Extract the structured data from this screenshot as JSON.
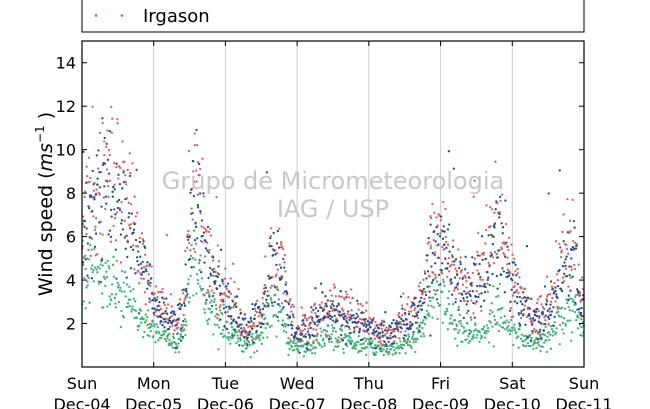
{
  "chart_data": {
    "type": "scatter",
    "ylabel": {
      "prefix": "Wind speed (",
      "unit_main": "ms",
      "unit_exp": "−1",
      "suffix": " )"
    },
    "ylim": [
      0,
      15
    ],
    "xlim": [
      0,
      7
    ],
    "yticks": [
      2,
      4,
      6,
      8,
      10,
      12,
      14
    ],
    "xticks": [
      {
        "pos": 0,
        "day": "Sun",
        "date": "Dec-04"
      },
      {
        "pos": 1,
        "day": "Mon",
        "date": "Dec-05"
      },
      {
        "pos": 2,
        "day": "Tue",
        "date": "Dec-06"
      },
      {
        "pos": 3,
        "day": "Wed",
        "date": "Dec-07"
      },
      {
        "pos": 4,
        "day": "Thu",
        "date": "Dec-08"
      },
      {
        "pos": 5,
        "day": "Fri",
        "date": "Dec-09"
      },
      {
        "pos": 6,
        "day": "Sat",
        "date": "Dec-10"
      },
      {
        "pos": 7,
        "day": "Sun",
        "date": "Dec-11"
      }
    ],
    "grid": "vertical",
    "legend_placement": "top",
    "watermark": [
      "Grupo de Micrometeorologia",
      "IAG / USP"
    ],
    "series": [
      {
        "name": "Irgason",
        "color": "#d95f5f",
        "envelope": [
          [
            0.0,
            7.0
          ],
          [
            0.15,
            8.0
          ],
          [
            0.3,
            8.5
          ],
          [
            0.45,
            9.0
          ],
          [
            0.6,
            8.0
          ],
          [
            0.75,
            5.8
          ],
          [
            0.9,
            4.0
          ],
          [
            1.0,
            3.0
          ],
          [
            1.2,
            2.5
          ],
          [
            1.35,
            2.0
          ],
          [
            1.45,
            4.0
          ],
          [
            1.55,
            10.0
          ],
          [
            1.62,
            8.0
          ],
          [
            1.75,
            5.0
          ],
          [
            1.9,
            3.5
          ],
          [
            2.1,
            3.0
          ],
          [
            2.3,
            1.5
          ],
          [
            2.5,
            2.5
          ],
          [
            2.65,
            5.0
          ],
          [
            2.78,
            5.0
          ],
          [
            2.9,
            2.5
          ],
          [
            3.0,
            1.5
          ],
          [
            3.2,
            2.0
          ],
          [
            3.35,
            2.5
          ],
          [
            3.5,
            3.0
          ],
          [
            3.7,
            2.5
          ],
          [
            4.0,
            2.0
          ],
          [
            4.2,
            1.5
          ],
          [
            4.5,
            2.0
          ],
          [
            4.7,
            2.5
          ],
          [
            4.85,
            5.0
          ],
          [
            5.0,
            6.0
          ],
          [
            5.2,
            4.0
          ],
          [
            5.4,
            3.5
          ],
          [
            5.6,
            4.5
          ],
          [
            5.78,
            6.5
          ],
          [
            5.95,
            4.5
          ],
          [
            6.1,
            3.5
          ],
          [
            6.25,
            2.5
          ],
          [
            6.45,
            2.5
          ],
          [
            6.6,
            3.5
          ],
          [
            6.75,
            5.0
          ],
          [
            6.85,
            6.0
          ],
          [
            6.95,
            3.0
          ],
          [
            7.0,
            2.8
          ]
        ]
      },
      {
        "name": "",
        "color": "#1f4e8c",
        "envelope": [
          [
            0.0,
            6.0
          ],
          [
            0.15,
            7.2
          ],
          [
            0.3,
            7.8
          ],
          [
            0.45,
            8.0
          ],
          [
            0.6,
            7.0
          ],
          [
            0.75,
            5.5
          ],
          [
            0.9,
            4.0
          ],
          [
            1.0,
            2.8
          ],
          [
            1.2,
            2.3
          ],
          [
            1.35,
            2.0
          ],
          [
            1.45,
            3.5
          ],
          [
            1.55,
            9.0
          ],
          [
            1.62,
            7.5
          ],
          [
            1.75,
            4.5
          ],
          [
            1.9,
            3.5
          ],
          [
            2.1,
            2.5
          ],
          [
            2.3,
            1.5
          ],
          [
            2.5,
            2.5
          ],
          [
            2.65,
            4.5
          ],
          [
            2.78,
            4.5
          ],
          [
            2.9,
            2.2
          ],
          [
            3.0,
            1.5
          ],
          [
            3.2,
            1.8
          ],
          [
            3.35,
            2.5
          ],
          [
            3.5,
            2.8
          ],
          [
            3.7,
            2.2
          ],
          [
            4.0,
            1.8
          ],
          [
            4.2,
            1.5
          ],
          [
            4.5,
            2.0
          ],
          [
            4.7,
            2.5
          ],
          [
            4.85,
            4.5
          ],
          [
            5.0,
            5.5
          ],
          [
            5.2,
            4.0
          ],
          [
            5.4,
            3.2
          ],
          [
            5.6,
            4.0
          ],
          [
            5.78,
            6.0
          ],
          [
            5.95,
            4.0
          ],
          [
            6.1,
            3.2
          ],
          [
            6.25,
            2.2
          ],
          [
            6.45,
            2.2
          ],
          [
            6.6,
            3.2
          ],
          [
            6.75,
            4.5
          ],
          [
            6.85,
            5.5
          ],
          [
            6.95,
            3.0
          ],
          [
            7.0,
            2.8
          ]
        ]
      },
      {
        "name": "",
        "color": "#3cb371",
        "envelope": [
          [
            0.0,
            4.5
          ],
          [
            0.15,
            4.5
          ],
          [
            0.3,
            4.0
          ],
          [
            0.45,
            3.5
          ],
          [
            0.6,
            3.0
          ],
          [
            0.75,
            2.5
          ],
          [
            0.9,
            2.0
          ],
          [
            1.0,
            1.8
          ],
          [
            1.2,
            1.2
          ],
          [
            1.35,
            1.0
          ],
          [
            1.45,
            2.0
          ],
          [
            1.55,
            5.5
          ],
          [
            1.62,
            4.5
          ],
          [
            1.75,
            2.5
          ],
          [
            1.9,
            2.0
          ],
          [
            2.1,
            1.5
          ],
          [
            2.3,
            1.0
          ],
          [
            2.5,
            1.5
          ],
          [
            2.65,
            3.0
          ],
          [
            2.78,
            2.5
          ],
          [
            2.9,
            1.0
          ],
          [
            3.0,
            0.8
          ],
          [
            3.2,
            1.0
          ],
          [
            3.35,
            1.5
          ],
          [
            3.5,
            1.5
          ],
          [
            3.7,
            1.2
          ],
          [
            4.0,
            1.0
          ],
          [
            4.2,
            0.8
          ],
          [
            4.5,
            1.0
          ],
          [
            4.7,
            1.5
          ],
          [
            4.85,
            3.0
          ],
          [
            5.0,
            3.5
          ],
          [
            5.2,
            2.0
          ],
          [
            5.4,
            1.5
          ],
          [
            5.6,
            1.5
          ],
          [
            5.78,
            2.5
          ],
          [
            5.95,
            2.0
          ],
          [
            6.1,
            1.5
          ],
          [
            6.25,
            1.2
          ],
          [
            6.45,
            1.2
          ],
          [
            6.6,
            1.8
          ],
          [
            6.75,
            2.5
          ],
          [
            6.85,
            3.0
          ],
          [
            6.95,
            2.0
          ],
          [
            7.0,
            1.8
          ]
        ]
      }
    ]
  },
  "legend": {
    "label": "Irgason",
    "color": "#d95f5f"
  }
}
